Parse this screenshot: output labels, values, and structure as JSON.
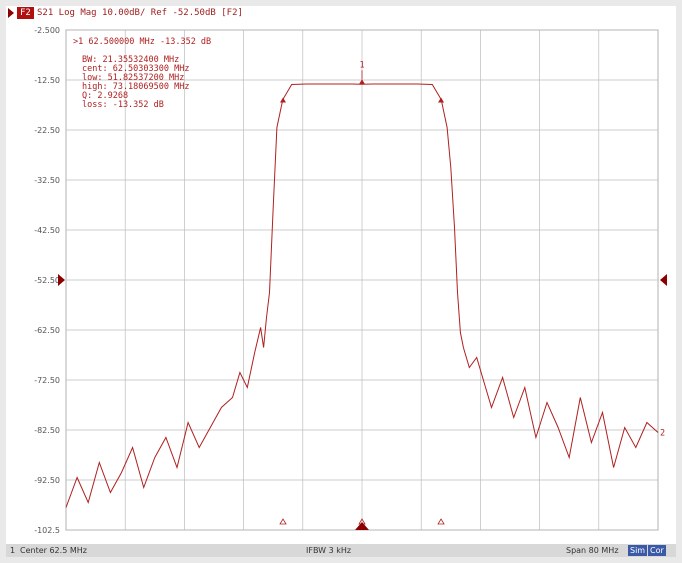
{
  "header": {
    "channel_tag": "F2",
    "trace_label": "S21 Log Mag 10.00dB/ Ref -52.50dB [F2]"
  },
  "marker_readout": {
    "active": ">1  62.500000 MHz -13.352 dB",
    "lines": [
      "   BW:  21.35532400 MHz",
      " cent:  62.50303300 MHz",
      "  low:  51.82537200 MHz",
      " high:  73.18069500 MHz",
      "    Q:  2.9268",
      "loss:  -13.352 dB"
    ],
    "marker_number": "1",
    "right_edge_tag": "2"
  },
  "status": {
    "channel": "1",
    "center": "Center 62.5 MHz",
    "ifbw": "IFBW 3 kHz",
    "span": "Span 80 MHz",
    "badge_sim": "Sim",
    "badge_cor": "Cor"
  },
  "colors": {
    "trace": "#b02020",
    "grid": "#bcbcbc",
    "reference_marker": "#8b0000"
  },
  "chart_data": {
    "type": "line",
    "title": "",
    "xlabel": "",
    "ylabel": "",
    "ylim": [
      -102.5,
      -2.5
    ],
    "xlim": [
      22.5,
      102.5
    ],
    "y_ticks": [
      "-2.500",
      "-12.50",
      "-22.50",
      "-32.50",
      "-42.50",
      "-52.50",
      "-62.50",
      "-72.50",
      "-82.50",
      "-92.50",
      "-102.5"
    ],
    "reference_level": -52.5,
    "grid": true,
    "x_unit": "MHz",
    "y_unit": "dB",
    "markers": [
      {
        "label": "1",
        "x": 62.5,
        "y": -13.352,
        "type": "active"
      },
      {
        "label": "",
        "x": 51.825,
        "y": -16.4,
        "type": "bandwidth-low"
      },
      {
        "label": "",
        "x": 73.181,
        "y": -16.4,
        "type": "bandwidth-high"
      }
    ],
    "series": [
      {
        "x": [
          22.5,
          24,
          25.5,
          27,
          28.5,
          30,
          31.5,
          33,
          34.5,
          36,
          37.5,
          39,
          40.5,
          42,
          43.5,
          45,
          46,
          47,
          48,
          48.8,
          49.2,
          49.6,
          50,
          50.5,
          51,
          51.8,
          53,
          55,
          57,
          59,
          61,
          62.5,
          64,
          66,
          68,
          70,
          72,
          73.2,
          74,
          74.5,
          75,
          75.4,
          75.8,
          76.2,
          77,
          78,
          79,
          80,
          81.5,
          83,
          84.5,
          86,
          87.5,
          89,
          90.5,
          92,
          93.5,
          95,
          96.5,
          98,
          99.5,
          101,
          102.5
        ],
        "values": [
          -98,
          -92,
          -97,
          -89,
          -95,
          -91,
          -86,
          -94,
          -88,
          -84,
          -90,
          -81,
          -86,
          -82,
          -78,
          -76,
          -71,
          -74,
          -67,
          -62,
          -66,
          -60,
          -55,
          -38,
          -22,
          -16.4,
          -13.4,
          -13.3,
          -13.3,
          -13.3,
          -13.3,
          -13.35,
          -13.3,
          -13.3,
          -13.3,
          -13.3,
          -13.4,
          -16.4,
          -22,
          -30,
          -42,
          -55,
          -63,
          -66,
          -70,
          -68,
          -73,
          -78,
          -72,
          -80,
          -74,
          -84,
          -77,
          -82,
          -88,
          -76,
          -85,
          -79,
          -90,
          -82,
          -86,
          -81,
          -83
        ]
      }
    ]
  }
}
